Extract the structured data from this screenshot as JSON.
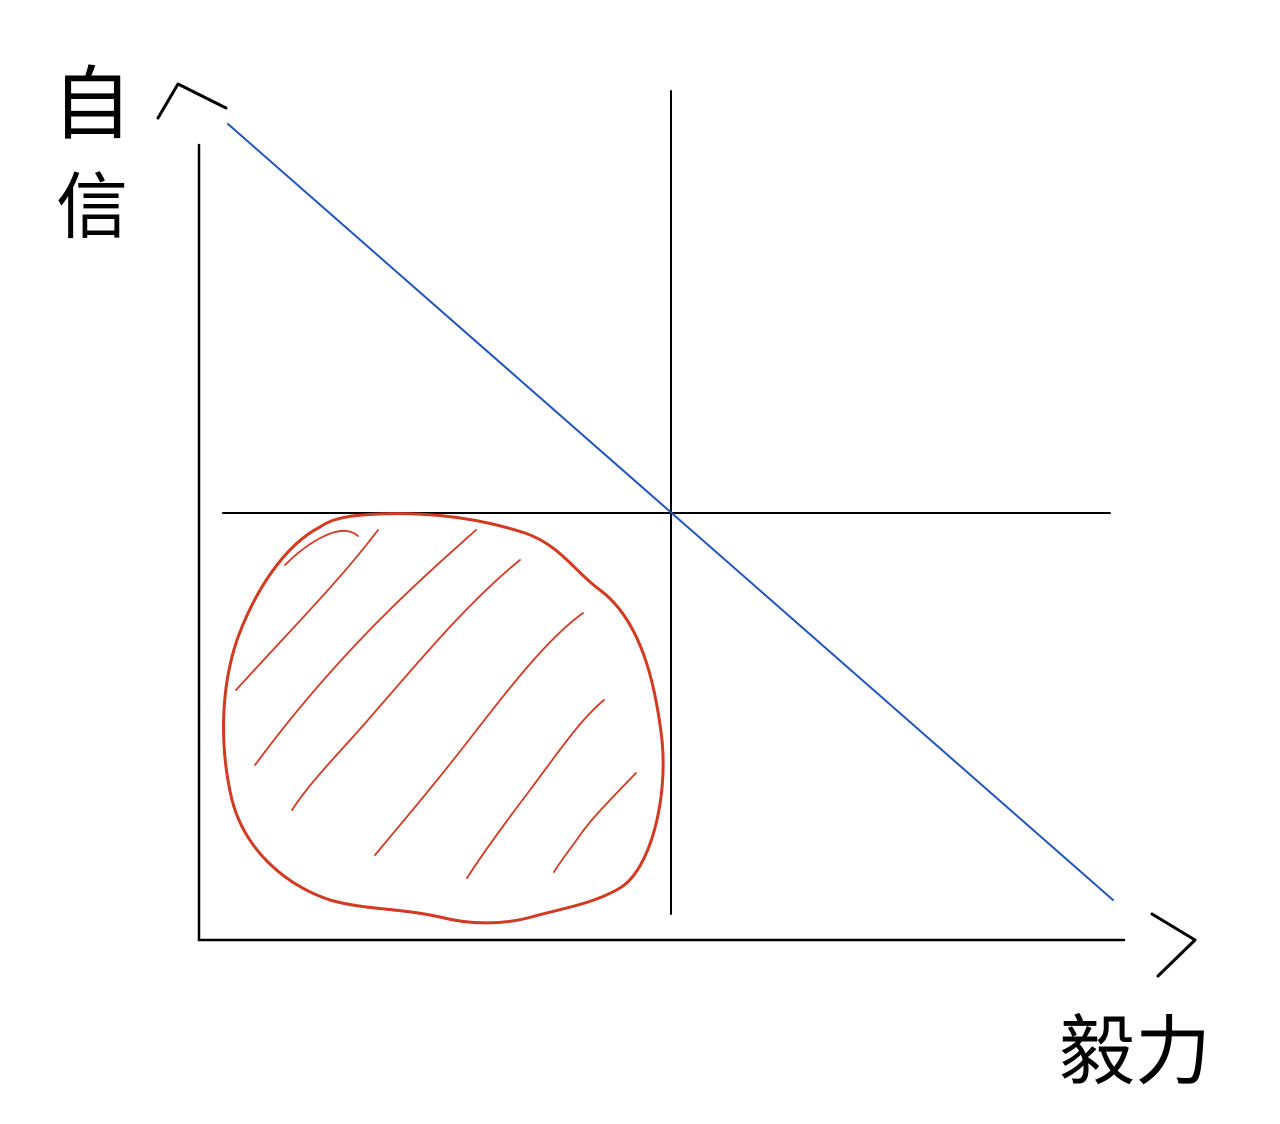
{
  "labels": {
    "y_axis_line1": "自",
    "y_axis_line2": "信",
    "x_axis": "毅力"
  },
  "colors": {
    "axes": "#000000",
    "diagonal": "#2255bb",
    "highlight": "#d23a22",
    "background": "#ffffff"
  }
}
